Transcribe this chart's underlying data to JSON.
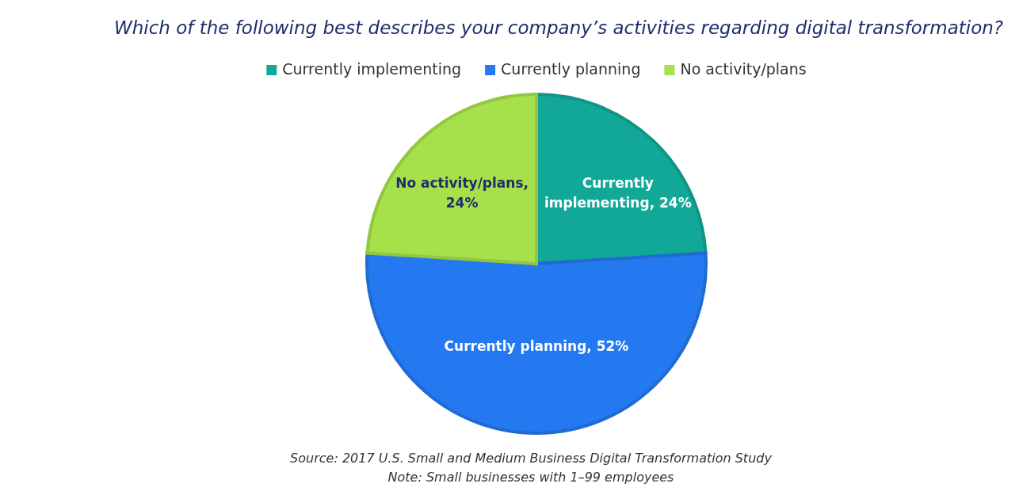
{
  "chart_data": {
    "type": "pie",
    "title": "Which of the following best describes your company’s activities regarding digital transformation?",
    "categories": [
      "Currently implementing",
      "Currently planning",
      "No activity/plans"
    ],
    "values": [
      24,
      52,
      24
    ],
    "colors": [
      "#12a898",
      "#2478f0",
      "#a6e04a"
    ],
    "value_labels": [
      "Currently implementing, 24%",
      "Currently planning, 52%",
      "No activity/plans, 24%"
    ],
    "legend": "top",
    "annotations": [
      "Source: 2017 U.S. Small and Medium Business Digital Transformation Study",
      "Note: Small businesses with 1–99 employees"
    ]
  }
}
